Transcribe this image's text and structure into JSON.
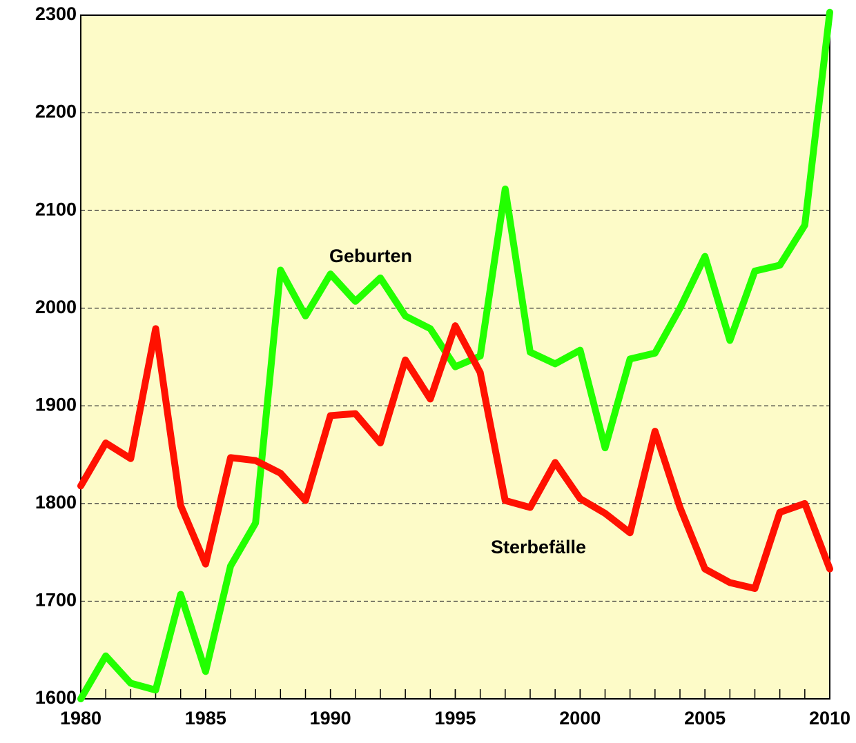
{
  "chart_data": {
    "type": "line",
    "x": [
      1980,
      1981,
      1982,
      1983,
      1984,
      1985,
      1986,
      1987,
      1988,
      1989,
      1990,
      1991,
      1992,
      1993,
      1994,
      1995,
      1996,
      1997,
      1998,
      1999,
      2000,
      2001,
      2002,
      2003,
      2004,
      2005,
      2006,
      2007,
      2008,
      2009,
      2010
    ],
    "series": [
      {
        "name": "Geburten",
        "color": "#22ff00",
        "values": [
          1600,
          1644,
          1616,
          1609,
          1707,
          1628,
          1736,
          1780,
          2039,
          1992,
          2035,
          2007,
          2031,
          1992,
          1979,
          1940,
          1951,
          2122,
          1955,
          1943,
          1957,
          1857,
          1948,
          1954,
          2000,
          2053,
          1967,
          2038,
          2044,
          2085,
          2303
        ]
      },
      {
        "name": "Sterbefälle",
        "color": "#ff1100",
        "values": [
          1818,
          1862,
          1846,
          1979,
          1798,
          1738,
          1847,
          1844,
          1831,
          1803,
          1890,
          1892,
          1862,
          1947,
          1907,
          1982,
          1934,
          1803,
          1796,
          1842,
          1805,
          1790,
          1770,
          1874,
          1796,
          1733,
          1719,
          1713,
          1791,
          1800,
          1733
        ]
      }
    ],
    "xlim": [
      1980,
      2010
    ],
    "xticks": [
      1980,
      1985,
      1990,
      1995,
      2000,
      2005,
      2010
    ],
    "ylim": [
      1600,
      2300
    ],
    "yticks": [
      1600,
      1700,
      1800,
      1900,
      2000,
      2100,
      2200,
      2300
    ],
    "grid": true,
    "background": "#fdfbc8"
  }
}
